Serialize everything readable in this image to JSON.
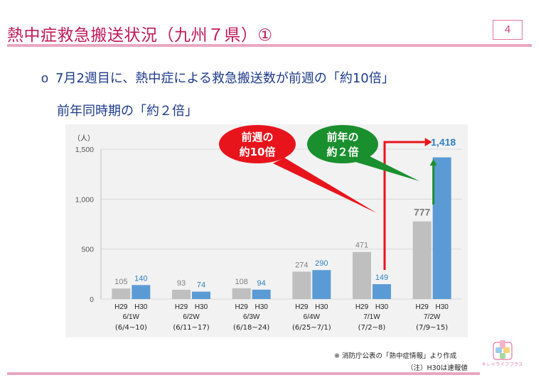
{
  "slide": {
    "title": "熱中症救急搬送状況（九州７県）①",
    "page_number": "4",
    "bullet_marker": "o",
    "bullet_line1": "7月2週目に、熱中症による救急搬送数が前週の「約10倍」",
    "bullet_line2": "前年同時期の「約２倍」"
  },
  "callouts": {
    "red_line1": "前週の",
    "red_line2": "約10倍",
    "green_line1": "前年の",
    "green_line2": "約２倍"
  },
  "footnotes": {
    "source": "※ 消防庁公表の「熱中症情報」より作成",
    "note": "（注）H30は速報値",
    "logo_text": "キレイライフプラス"
  },
  "colors": {
    "accent": "#c0185a",
    "rule": "#e8a7c0",
    "h29": "#bfbfbf",
    "h30": "#5b9bd5",
    "h30_label": "#2f7fc1",
    "h29_label": "#7f7f7f",
    "red": "#e8141c",
    "green": "#1a8f2e"
  },
  "chart_data": {
    "type": "bar",
    "ylabel": "（人）",
    "ylim": [
      0,
      1500
    ],
    "yticks": [
      "0",
      "500",
      "1,000",
      "1,500"
    ],
    "ytick_values": [
      0,
      500,
      1000,
      1500
    ],
    "categories": [
      "6/1W",
      "6/2W",
      "6/3W",
      "6/4W",
      "7/1W",
      "7/2W"
    ],
    "date_ranges": [
      "(6/4~10)",
      "(6/11~17)",
      "(6/18~24)",
      "(6/25~7/1)",
      "(7/2~8)",
      "(7/9~15)"
    ],
    "series_labels": [
      "H29",
      "H30"
    ],
    "series": [
      {
        "name": "H29",
        "values": [
          105,
          93,
          108,
          274,
          471,
          777
        ],
        "labels": [
          "105",
          "93",
          "108",
          "274",
          "471",
          "777"
        ]
      },
      {
        "name": "H30",
        "values": [
          140,
          74,
          94,
          290,
          149,
          1418
        ],
        "labels": [
          "140",
          "74",
          "94",
          "290",
          "149",
          "1,418"
        ]
      }
    ]
  }
}
